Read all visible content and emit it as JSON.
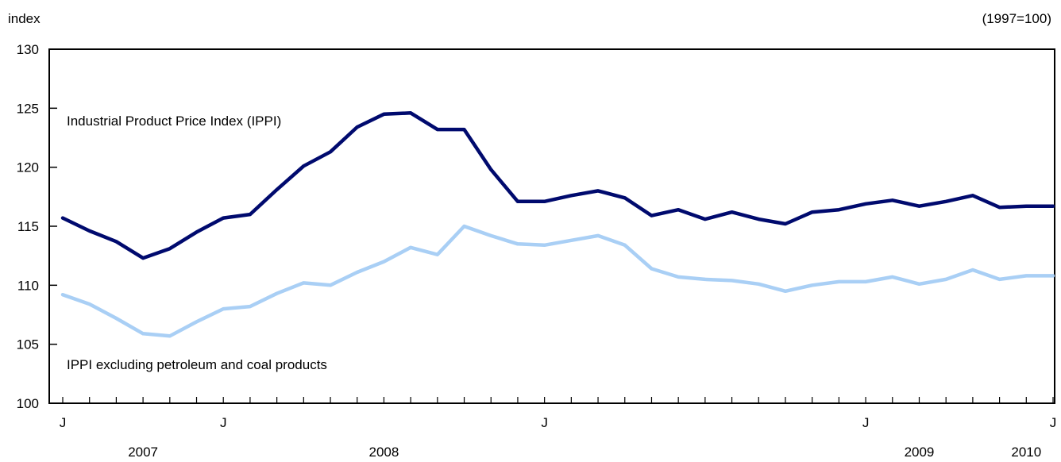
{
  "chart_data": {
    "type": "line",
    "ylabel": "index",
    "unit_note": "(1997=100)",
    "ylim": [
      100,
      130
    ],
    "yticks": [
      100,
      105,
      110,
      115,
      120,
      125,
      130
    ],
    "x": [
      "2007-01",
      "2007-02",
      "2007-03",
      "2007-04",
      "2007-05",
      "2007-06",
      "2007-07",
      "2007-08",
      "2007-09",
      "2007-10",
      "2007-11",
      "2007-12",
      "2008-01",
      "2008-02",
      "2008-03",
      "2008-04",
      "2008-05",
      "2008-06",
      "2008-07",
      "2008-08",
      "2008-09",
      "2008-10",
      "2008-11",
      "2008-12",
      "2009-01",
      "2009-02",
      "2009-03",
      "2009-04",
      "2009-05",
      "2009-06",
      "2009-07",
      "2009-08",
      "2009-09",
      "2009-10",
      "2009-11",
      "2009-12",
      "2010-01",
      "2010-02"
    ],
    "x_month_ticks": [
      {
        "label": "J",
        "x": "2007-01"
      },
      {
        "label": "J",
        "x": "2007-07"
      },
      {
        "label": "J",
        "x": "2008-07"
      },
      {
        "label": "J",
        "x": "2009-07"
      },
      {
        "label": "J",
        "x": "2010-02"
      }
    ],
    "x_year_labels": [
      {
        "label": "2007",
        "x": "2007-04"
      },
      {
        "label": "2008",
        "x": "2008-01"
      },
      {
        "label": "2009",
        "x": "2009-09"
      },
      {
        "label": "2010",
        "x": "2010-01"
      }
    ],
    "series": [
      {
        "name": "Industrial Product Price Index (IPPI)",
        "color": "#000a6e",
        "values": [
          115.7,
          114.6,
          113.7,
          112.3,
          113.1,
          114.5,
          115.7,
          116.0,
          118.1,
          120.1,
          121.3,
          123.4,
          124.5,
          124.6,
          123.2,
          123.2,
          119.8,
          117.1,
          117.1,
          117.6,
          118.0,
          117.4,
          115.9,
          116.4,
          115.6,
          116.2,
          115.6,
          115.2,
          116.2,
          116.4,
          116.9,
          117.2,
          116.7,
          117.1,
          117.6,
          116.6,
          116.7,
          116.7
        ]
      },
      {
        "name": "IPPI excluding petroleum and coal products",
        "color": "#a9cff5",
        "values": [
          109.2,
          108.4,
          107.2,
          105.9,
          105.7,
          106.9,
          108.0,
          108.2,
          109.3,
          110.2,
          110.0,
          111.1,
          112.0,
          113.2,
          112.6,
          115.0,
          114.2,
          113.5,
          113.4,
          113.8,
          114.2,
          113.4,
          111.4,
          110.7,
          110.5,
          110.4,
          110.1,
          109.5,
          110.0,
          110.3,
          110.3,
          110.7,
          110.1,
          110.5,
          111.3,
          110.5,
          110.8,
          110.8
        ]
      }
    ]
  }
}
